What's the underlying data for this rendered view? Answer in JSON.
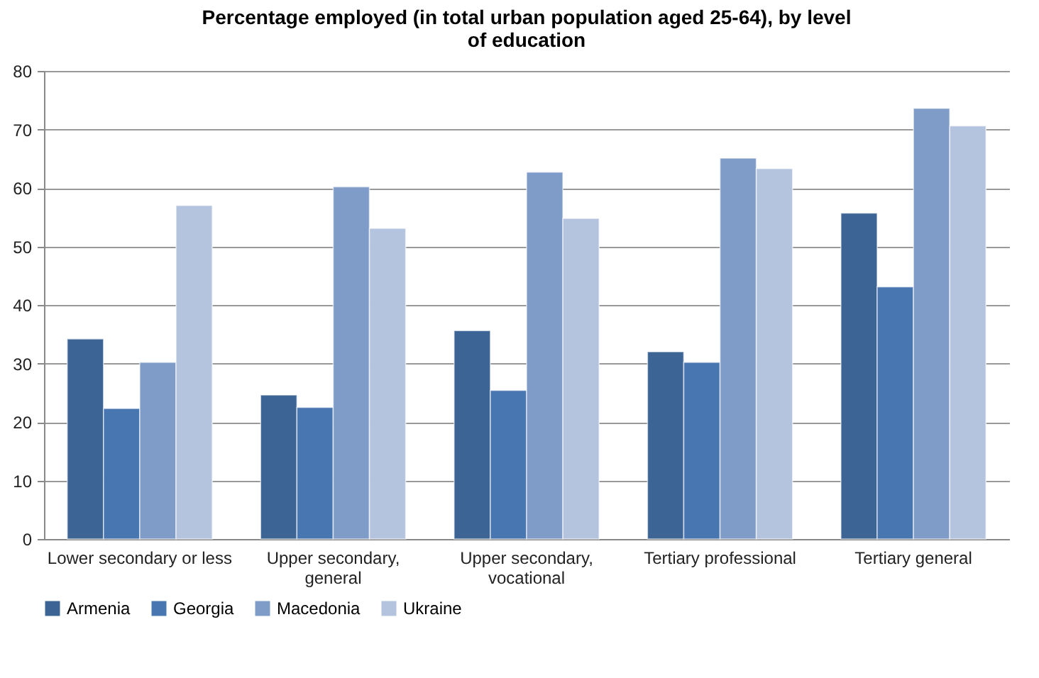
{
  "chart_data": {
    "type": "bar",
    "title": "Percentage employed (in total urban population aged 25-64), by level of education",
    "categories": [
      "Lower secondary or less",
      "Upper secondary, general",
      "Upper secondary, vocational",
      "Tertiary professional",
      "Tertiary general"
    ],
    "series": [
      {
        "name": "Armenia",
        "color": "#3c6595",
        "values": [
          34.2,
          24.6,
          35.6,
          32.0,
          55.7
        ]
      },
      {
        "name": "Georgia",
        "color": "#4876b0",
        "values": [
          22.3,
          22.5,
          25.4,
          30.2,
          43.1
        ]
      },
      {
        "name": "Macedonia",
        "color": "#7f9cc8",
        "values": [
          30.2,
          60.2,
          62.7,
          65.1,
          73.6
        ]
      },
      {
        "name": "Ukraine",
        "color": "#b4c3de",
        "values": [
          57.0,
          53.1,
          54.8,
          63.3,
          70.6
        ]
      }
    ],
    "ylim": [
      0,
      80
    ],
    "yticks": [
      0,
      10,
      20,
      30,
      40,
      50,
      60,
      70,
      80
    ],
    "grid": "y",
    "legend": "bottom"
  }
}
